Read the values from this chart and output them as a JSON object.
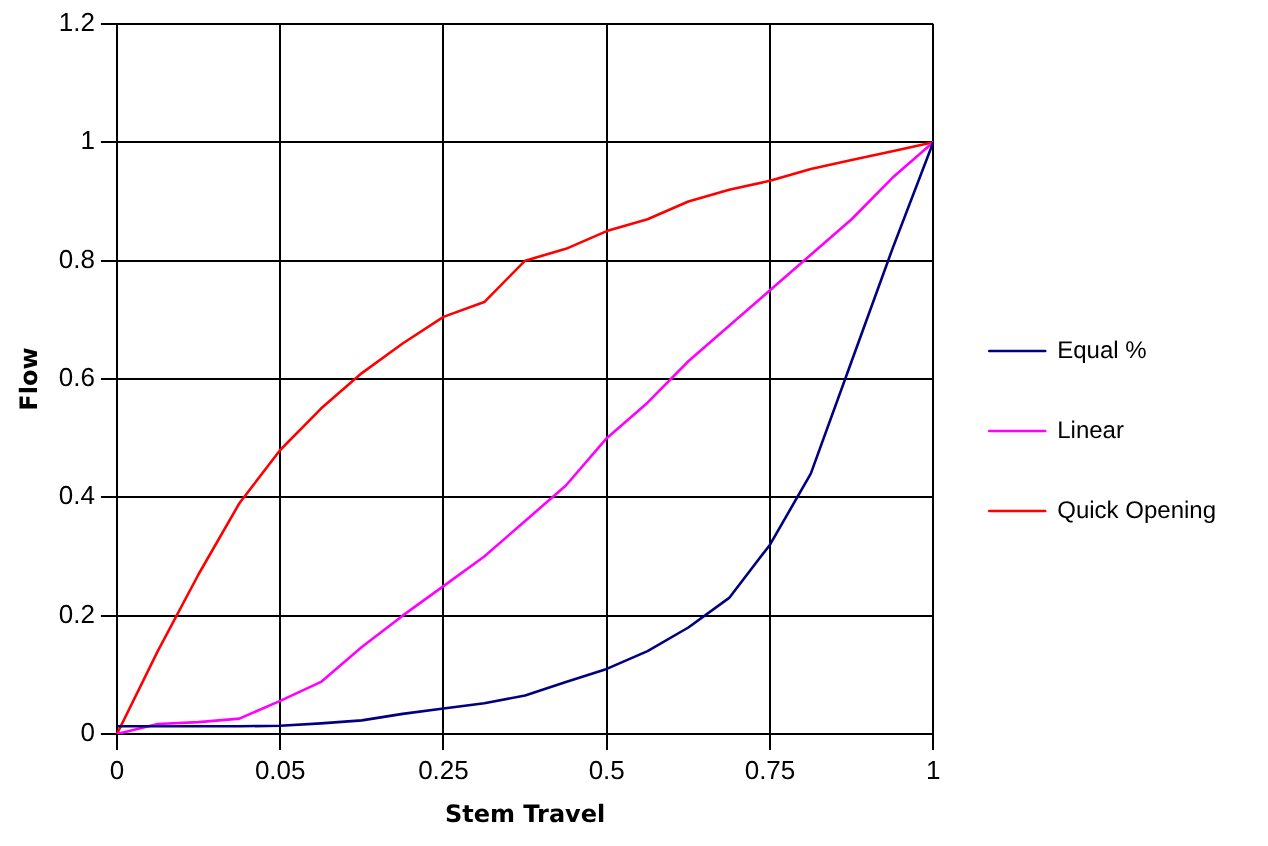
{
  "chart_data": {
    "type": "line",
    "xlabel": "Stem Travel",
    "ylabel": "Flow",
    "categories": [
      "0",
      null,
      null,
      null,
      "0.05",
      null,
      null,
      null,
      "0.25",
      null,
      null,
      null,
      "0.5",
      null,
      null,
      null,
      "0.75",
      null,
      null,
      null,
      "1"
    ],
    "series": [
      {
        "name": "Equal %",
        "color": "#000080",
        "values": [
          0.013,
          0.013,
          0.013,
          0.013,
          0.014,
          0.018,
          0.023,
          0.034,
          0.043,
          0.052,
          0.065,
          0.088,
          0.11,
          0.14,
          0.18,
          0.23,
          0.32,
          0.44,
          0.63,
          0.82,
          1
        ]
      },
      {
        "name": "Linear",
        "color": "#ff00ff",
        "values": [
          0,
          0.017,
          0.02,
          0.026,
          0.056,
          0.088,
          0.147,
          0.2,
          0.25,
          0.3,
          0.36,
          0.42,
          0.5,
          0.56,
          0.63,
          0.69,
          0.75,
          0.81,
          0.87,
          0.94,
          1
        ]
      },
      {
        "name": "Quick Opening",
        "color": "#ff0000",
        "values": [
          0,
          0.14,
          0.27,
          0.39,
          0.48,
          0.55,
          0.61,
          0.66,
          0.705,
          0.73,
          0.8,
          0.82,
          0.85,
          0.87,
          0.9,
          0.92,
          0.935,
          0.955,
          0.97,
          0.985,
          1
        ]
      }
    ],
    "ylim": [
      0,
      1.2
    ],
    "yticks": [
      0,
      0.2,
      0.4,
      0.6,
      0.8,
      1,
      1.2
    ],
    "grid": true,
    "legend": "right",
    "marker": "none",
    "line_style": "solid"
  }
}
